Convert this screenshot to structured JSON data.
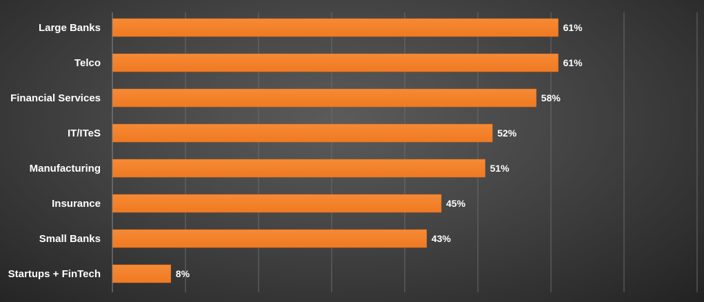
{
  "chart_data": {
    "type": "bar",
    "orientation": "horizontal",
    "categories": [
      "Large Banks",
      "Telco",
      "Financial Services",
      "IT/ITeS",
      "Manufacturing",
      "Insurance",
      "Small Banks",
      "Startups + FinTech"
    ],
    "values": [
      61,
      61,
      58,
      52,
      51,
      45,
      43,
      8
    ],
    "value_labels": [
      "61%",
      "61%",
      "58%",
      "52%",
      "51%",
      "45%",
      "43%",
      "8%"
    ],
    "xlim": [
      0,
      80
    ],
    "grid": true,
    "bar_color": "#f5822c",
    "grid_color": "#6a6a6a",
    "axis_color": "#8a8a8a"
  }
}
